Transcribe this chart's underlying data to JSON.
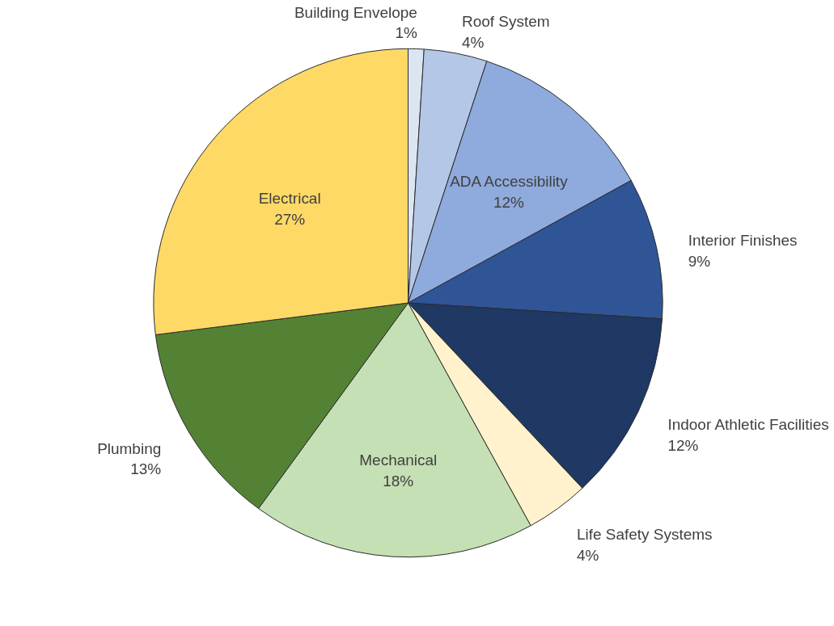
{
  "chart_data": {
    "type": "pie",
    "categories": [
      "Building Envelope",
      "Roof System",
      "ADA Accessibility",
      "Interior Finishes",
      "Indoor Athletic Facilities",
      "Life Safety Systems",
      "Mechanical",
      "Plumbing",
      "Electrical"
    ],
    "values": [
      1,
      4,
      12,
      9,
      12,
      4,
      18,
      13,
      27
    ],
    "value_labels": [
      "1%",
      "4%",
      "12%",
      "9%",
      "12%",
      "4%",
      "18%",
      "13%",
      "27%"
    ],
    "colors": [
      "#dce6f2",
      "#b4c7e7",
      "#8faadc",
      "#2f5597",
      "#1f3864",
      "#fff2cc",
      "#c5e0b4",
      "#548235",
      "#ffd966"
    ],
    "legend": false
  }
}
